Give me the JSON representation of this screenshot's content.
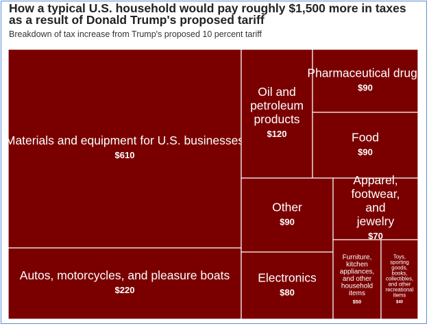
{
  "title": "How a typical U.S. household would pay roughly $1,500 more in taxes as a result of Donald Trump's proposed tariff",
  "subtitle": "Breakdown of tax increase from Trump's proposed 10 percent tariff",
  "colors": {
    "cell": "#7a0000",
    "divider": "#ffffff",
    "title": "#222222"
  },
  "chart_data": {
    "type": "treemap",
    "title": "How a typical U.S. household would pay roughly $1,500 more in taxes as a result of Donald Trump's proposed tariff",
    "subtitle": "Breakdown of tax increase from Trump's proposed 10 percent tariff",
    "unit": "USD",
    "items": [
      {
        "label": "Materials and equipment for U.S. businesses",
        "value": 610,
        "value_label": "$610"
      },
      {
        "label": "Autos, motorcycles, and pleasure boats",
        "value": 220,
        "value_label": "$220"
      },
      {
        "label": "Oil and petroleum products",
        "value": 120,
        "value_label": "$120"
      },
      {
        "label": "Pharmaceutical drugs",
        "value": 90,
        "value_label": "$90"
      },
      {
        "label": "Food",
        "value": 90,
        "value_label": "$90"
      },
      {
        "label": "Other",
        "value": 90,
        "value_label": "$90"
      },
      {
        "label": "Electronics",
        "value": 80,
        "value_label": "$80"
      },
      {
        "label": "Apparel, footwear, and jewelry",
        "value": 70,
        "value_label": "$70"
      },
      {
        "label": "Furniture, kitchen appliances, and other household items",
        "value": 50,
        "value_label": "$50"
      },
      {
        "label": "Toys, sporting goods, books, collectibles, and other recreational items",
        "value": 40,
        "value_label": "$40"
      }
    ]
  }
}
